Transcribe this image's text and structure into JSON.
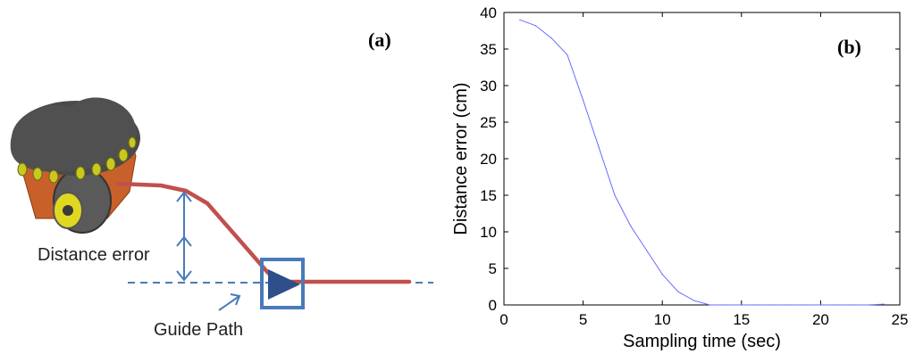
{
  "panel_a": {
    "letter": "(a)",
    "distance_error_label": "Distance error",
    "guide_path_label": "Guide Path",
    "colors": {
      "path_red": "#c0504d",
      "annotation_blue": "#4a7ab8",
      "robot_body": "#c8602a",
      "robot_top": "#4a4a4a"
    }
  },
  "panel_b": {
    "letter": "(b)"
  },
  "chart_data": {
    "type": "line",
    "xlabel": "Sampling time (sec)",
    "ylabel": "Distance error (cm)",
    "xlim": [
      0,
      25
    ],
    "ylim": [
      0,
      40
    ],
    "xticks": [
      0,
      5,
      10,
      15,
      20,
      25
    ],
    "yticks": [
      0,
      5,
      10,
      15,
      20,
      25,
      30,
      35,
      40
    ],
    "grid": false,
    "series": [
      {
        "color": "#6a6aff",
        "x": [
          1,
          2,
          3,
          4,
          5,
          6,
          7,
          8,
          9,
          10,
          11,
          12,
          13,
          14,
          15,
          16,
          17,
          18,
          19,
          20,
          21,
          22,
          23,
          24
        ],
        "y": [
          39,
          38.2,
          36.5,
          34.2,
          28,
          21.5,
          15,
          10.8,
          7.5,
          4.2,
          1.8,
          0.6,
          0,
          0,
          0,
          0,
          0,
          0,
          0,
          0,
          0,
          0,
          0,
          0.1
        ]
      }
    ]
  }
}
